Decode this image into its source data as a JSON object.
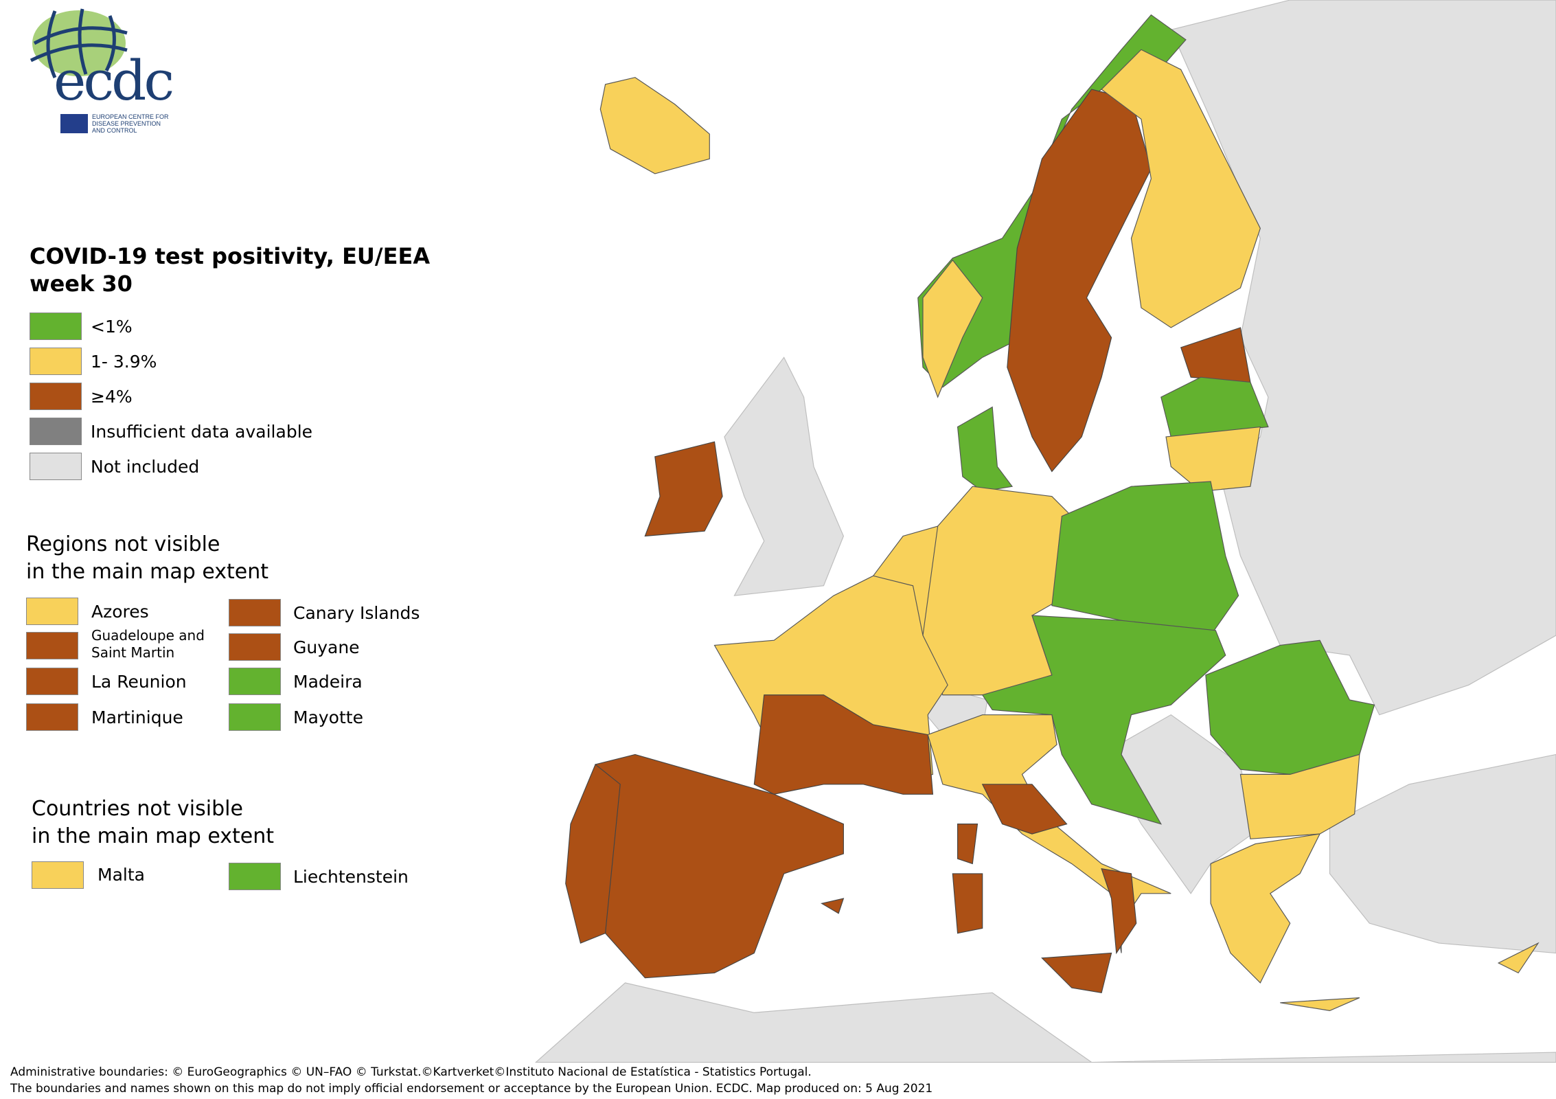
{
  "logo": {
    "wordmark": "ecdc",
    "subtitle_lines": [
      "EUROPEAN CENTRE FOR",
      "DISEASE PREVENTION",
      "AND CONTROL"
    ]
  },
  "legend": {
    "title_line1": "COVID-19 test positivity, EU/EEA",
    "title_line2": "week 30",
    "items": [
      {
        "label": "<1%",
        "color": "#63b22f"
      },
      {
        "label": "1- 3.9%",
        "color": "#f8d15a"
      },
      {
        "label": "≥4%",
        "color": "#ac5015"
      },
      {
        "label": "Insufficient data available",
        "color": "#808080"
      },
      {
        "label": "Not included",
        "color": "#e1e1e1"
      }
    ]
  },
  "regions_section": {
    "title_line1": "Regions not visible",
    "title_line2": "in the main map extent",
    "items": [
      {
        "label": "Azores",
        "category": "1- 3.9%"
      },
      {
        "label": "Canary Islands",
        "category": "≥4%"
      },
      {
        "label": "Guadeloupe and Saint Martin",
        "category": "≥4%"
      },
      {
        "label": "Guyane",
        "category": "≥4%"
      },
      {
        "label": "La Reunion",
        "category": "≥4%"
      },
      {
        "label": "Madeira",
        "category": "<1%"
      },
      {
        "label": "Martinique",
        "category": "≥4%"
      },
      {
        "label": "Mayotte",
        "category": "<1%"
      }
    ]
  },
  "countries_section": {
    "title_line1": "Countries not visible",
    "title_line2": "in the main map extent",
    "items": [
      {
        "label": "Malta",
        "category": "1- 3.9%"
      },
      {
        "label": "Liechtenstein",
        "category": "<1%"
      }
    ]
  },
  "map": {
    "sea_color": "#ffffff",
    "border_color": "#7a7a7a",
    "outline_color": "#222222"
  },
  "footer": {
    "line1": "Administrative boundaries: © EuroGeographics © UN–FAO © Turkstat.©Kartverket©Instituto Nacional de Estatística - Statistics Portugal.",
    "line2": "The boundaries and names shown on this map do not imply official endorsement or acceptance by the European Union. ECDC. Map produced on: 5 Aug 2021"
  }
}
